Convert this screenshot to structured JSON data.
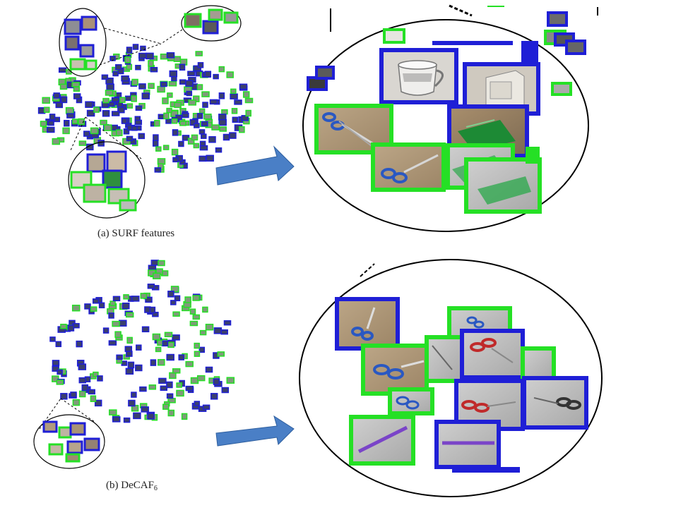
{
  "colors": {
    "domain_blue": "#1f1fd6",
    "domain_green": "#25e025",
    "arrow_fill": "#4a7fc6",
    "outline": "#000000"
  },
  "panels": [
    {
      "id": "a",
      "caption_prefix": "(a) SURF features",
      "caption_sub": "",
      "overview_icons": "tsne-scatter-thumbnails",
      "zoom_contents": [
        "mug",
        "computer-monitor",
        "scissors",
        "scissors",
        "green-binder",
        "green-binder",
        "green-binder"
      ]
    },
    {
      "id": "b",
      "caption_prefix": "(b) DeCAF",
      "caption_sub": "6",
      "overview_icons": "tsne-scatter-thumbnails",
      "zoom_contents": [
        "scissors",
        "scissors",
        "scissors",
        "scissors",
        "scissors",
        "scissors",
        "scissors",
        "scissors",
        "scissors"
      ]
    }
  ]
}
